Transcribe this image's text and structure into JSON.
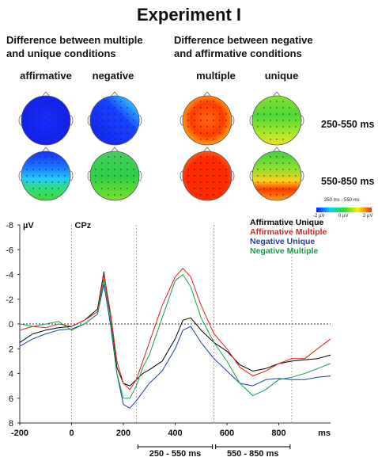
{
  "title": "Experiment I",
  "sections": [
    {
      "title": "Difference between multiple and unique conditions",
      "line1": "Difference between multiple",
      "line2": "and unique conditions",
      "columns": [
        "affirmative",
        "negative"
      ]
    },
    {
      "title": "Difference between negative and affirmative conditions",
      "line1": "Difference between negative",
      "line2": "and affirmative conditions",
      "columns": [
        "multiple",
        "unique"
      ]
    }
  ],
  "row_labels": [
    "250-550 ms",
    "550-850 ms"
  ],
  "colorbar": {
    "window_label": "250 ms - 550 ms",
    "ticks": [
      "-2 µV",
      "0 µV",
      "2 µV"
    ],
    "colors": [
      "#1a1aff",
      "#00d4ff",
      "#22dd33",
      "#ffee00",
      "#ff2a00"
    ]
  },
  "topomaps": [
    {
      "panel": "affirmative",
      "window": "250-550 ms",
      "pattern": "uniform-blue"
    },
    {
      "panel": "negative",
      "window": "250-550 ms",
      "pattern": "blue-with-frontal-cyan"
    },
    {
      "panel": "multiple",
      "window": "250-550 ms",
      "pattern": "red-orange"
    },
    {
      "panel": "unique",
      "window": "250-550 ms",
      "pattern": "green-yellow"
    },
    {
      "panel": "affirmative",
      "window": "550-850 ms",
      "pattern": "blue-front-cyan-green-back"
    },
    {
      "panel": "negative",
      "window": "550-850 ms",
      "pattern": "green"
    },
    {
      "panel": "multiple",
      "window": "550-850 ms",
      "pattern": "red"
    },
    {
      "panel": "unique",
      "window": "550-850 ms",
      "pattern": "green-yellow-red-posterior"
    }
  ],
  "chart_data": {
    "type": "line",
    "channel": "CPz",
    "unit_label": "µV",
    "x_unit_label": "ms",
    "xlim": [
      -200,
      1000
    ],
    "ylim": [
      -8,
      8
    ],
    "y_inverted": true,
    "x_ticks": [
      -200,
      0,
      200,
      400,
      600,
      800
    ],
    "y_ticks": [
      -8,
      -6,
      -4,
      -2,
      0,
      2,
      4,
      6,
      8
    ],
    "windows": [
      {
        "label": "250 - 550 ms",
        "start": 250,
        "end": 550
      },
      {
        "label": "550 - 850 ms",
        "start": 550,
        "end": 850
      }
    ],
    "legend_position": "top-right",
    "series": [
      {
        "name": "Affirmative Unique",
        "color": "#000000",
        "x": [
          -200,
          -150,
          -100,
          -50,
          0,
          50,
          100,
          125,
          150,
          175,
          200,
          225,
          250,
          275,
          300,
          350,
          400,
          430,
          460,
          500,
          550,
          600,
          650,
          700,
          750,
          800,
          850,
          900,
          950,
          1000
        ],
        "y": [
          1.5,
          0.8,
          0.5,
          0.3,
          0.2,
          -0.3,
          -1.2,
          -4.2,
          -0.5,
          3.5,
          4.8,
          5.0,
          4.5,
          4.0,
          3.7,
          3.0,
          1.2,
          -0.3,
          -0.5,
          0.5,
          1.5,
          2.2,
          3.3,
          3.8,
          3.6,
          3.2,
          3.0,
          2.9,
          2.8,
          2.5
        ]
      },
      {
        "name": "Affirmative Multiple",
        "color": "#e0211b",
        "x": [
          -200,
          -150,
          -100,
          -50,
          0,
          50,
          100,
          125,
          150,
          175,
          200,
          225,
          250,
          275,
          300,
          350,
          400,
          430,
          460,
          500,
          550,
          600,
          650,
          700,
          750,
          800,
          850,
          900,
          950,
          1000
        ],
        "y": [
          0.5,
          0.2,
          0.3,
          0.0,
          0.2,
          -0.3,
          -1.0,
          -4.0,
          -1.0,
          3.0,
          4.8,
          5.3,
          4.5,
          3.0,
          1.5,
          -1.5,
          -3.8,
          -4.5,
          -3.8,
          -1.5,
          0.8,
          2.0,
          3.5,
          4.2,
          3.8,
          3.2,
          2.8,
          2.8,
          2.0,
          1.2
        ]
      },
      {
        "name": "Negative Unique",
        "color": "#1e3fa0",
        "x": [
          -200,
          -150,
          -100,
          -50,
          0,
          50,
          100,
          125,
          150,
          175,
          200,
          225,
          250,
          275,
          300,
          350,
          400,
          430,
          460,
          500,
          550,
          600,
          650,
          700,
          750,
          800,
          850,
          900,
          950,
          1000
        ],
        "y": [
          1.8,
          1.2,
          0.8,
          0.5,
          0.4,
          0.0,
          -0.8,
          -3.2,
          0.0,
          4.0,
          6.5,
          6.8,
          6.2,
          5.5,
          4.8,
          3.8,
          2.0,
          0.5,
          0.2,
          1.5,
          2.8,
          3.8,
          4.8,
          5.0,
          4.5,
          4.4,
          4.5,
          4.5,
          4.3,
          4.2
        ]
      },
      {
        "name": "Negative Multiple",
        "color": "#17a04a",
        "x": [
          -200,
          -150,
          -100,
          -50,
          0,
          50,
          100,
          125,
          150,
          175,
          200,
          225,
          250,
          275,
          300,
          350,
          400,
          430,
          460,
          500,
          550,
          600,
          650,
          700,
          750,
          800,
          850,
          900,
          950,
          1000
        ],
        "y": [
          0.0,
          0.2,
          0.0,
          -0.2,
          0.5,
          0.0,
          -0.8,
          -3.6,
          -0.5,
          4.0,
          6.0,
          6.0,
          5.0,
          3.5,
          2.5,
          -0.5,
          -3.5,
          -4.0,
          -3.0,
          -0.5,
          1.5,
          3.0,
          4.8,
          5.8,
          5.3,
          4.5,
          4.3,
          4.0,
          3.6,
          3.2
        ]
      }
    ]
  }
}
